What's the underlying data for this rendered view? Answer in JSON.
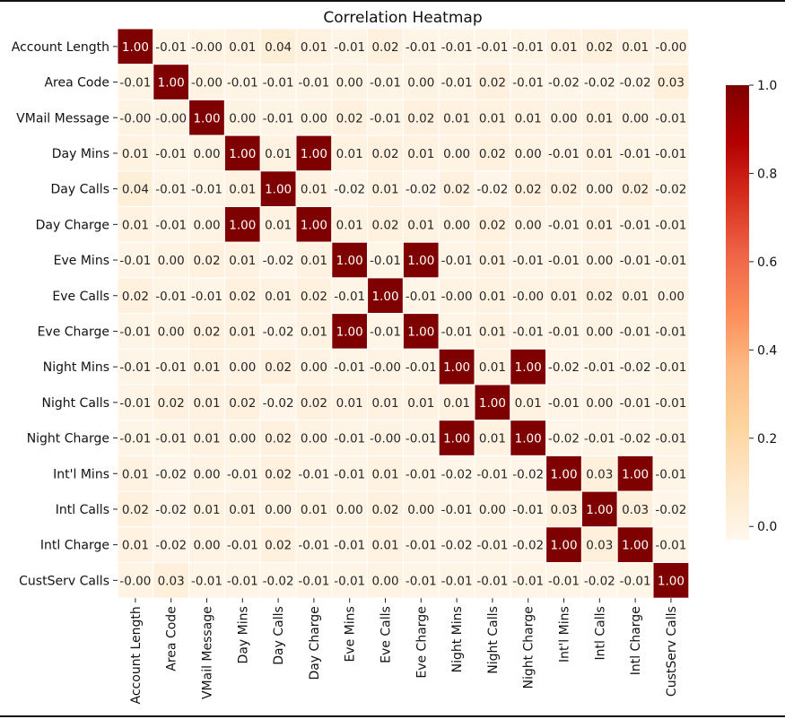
{
  "chart_data": {
    "type": "heatmap",
    "title": "Correlation Heatmap",
    "xlabel": "",
    "ylabel": "",
    "labels": [
      "Account Length",
      "Area Code",
      "VMail Message",
      "Day Mins",
      "Day Calls",
      "Day Charge",
      "Eve Mins",
      "Eve Calls",
      "Eve Charge",
      "Night Mins",
      "Night Calls",
      "Night Charge",
      "Int'l Mins",
      "Intl Calls",
      "Intl Charge",
      "CustServ Calls"
    ],
    "matrix": [
      [
        1.0,
        -0.01,
        -0.0,
        0.01,
        0.04,
        0.01,
        -0.01,
        0.02,
        -0.01,
        -0.01,
        -0.01,
        -0.01,
        0.01,
        0.02,
        0.01,
        -0.0
      ],
      [
        -0.01,
        1.0,
        -0.0,
        -0.01,
        -0.01,
        -0.01,
        0.0,
        -0.01,
        0.0,
        -0.01,
        0.02,
        -0.01,
        -0.02,
        -0.02,
        -0.02,
        0.03
      ],
      [
        -0.0,
        -0.0,
        1.0,
        0.0,
        -0.01,
        0.0,
        0.02,
        -0.01,
        0.02,
        0.01,
        0.01,
        0.01,
        0.0,
        0.01,
        0.0,
        -0.01
      ],
      [
        0.01,
        -0.01,
        0.0,
        1.0,
        0.01,
        1.0,
        0.01,
        0.02,
        0.01,
        0.0,
        0.02,
        0.0,
        -0.01,
        0.01,
        -0.01,
        -0.01
      ],
      [
        0.04,
        -0.01,
        -0.01,
        0.01,
        1.0,
        0.01,
        -0.02,
        0.01,
        -0.02,
        0.02,
        -0.02,
        0.02,
        0.02,
        0.0,
        0.02,
        -0.02
      ],
      [
        0.01,
        -0.01,
        0.0,
        1.0,
        0.01,
        1.0,
        0.01,
        0.02,
        0.01,
        0.0,
        0.02,
        0.0,
        -0.01,
        0.01,
        -0.01,
        -0.01
      ],
      [
        -0.01,
        0.0,
        0.02,
        0.01,
        -0.02,
        0.01,
        1.0,
        -0.01,
        1.0,
        -0.01,
        0.01,
        -0.01,
        -0.01,
        0.0,
        -0.01,
        -0.01
      ],
      [
        0.02,
        -0.01,
        -0.01,
        0.02,
        0.01,
        0.02,
        -0.01,
        1.0,
        -0.01,
        -0.0,
        0.01,
        -0.0,
        0.01,
        0.02,
        0.01,
        0.0
      ],
      [
        -0.01,
        0.0,
        0.02,
        0.01,
        -0.02,
        0.01,
        1.0,
        -0.01,
        1.0,
        -0.01,
        0.01,
        -0.01,
        -0.01,
        0.0,
        -0.01,
        -0.01
      ],
      [
        -0.01,
        -0.01,
        0.01,
        0.0,
        0.02,
        0.0,
        -0.01,
        -0.0,
        -0.01,
        1.0,
        0.01,
        1.0,
        -0.02,
        -0.01,
        -0.02,
        -0.01
      ],
      [
        -0.01,
        0.02,
        0.01,
        0.02,
        -0.02,
        0.02,
        0.01,
        0.01,
        0.01,
        0.01,
        1.0,
        0.01,
        -0.01,
        0.0,
        -0.01,
        -0.01
      ],
      [
        -0.01,
        -0.01,
        0.01,
        0.0,
        0.02,
        0.0,
        -0.01,
        -0.0,
        -0.01,
        1.0,
        0.01,
        1.0,
        -0.02,
        -0.01,
        -0.02,
        -0.01
      ],
      [
        0.01,
        -0.02,
        0.0,
        -0.01,
        0.02,
        -0.01,
        -0.01,
        0.01,
        -0.01,
        -0.02,
        -0.01,
        -0.02,
        1.0,
        0.03,
        1.0,
        -0.01
      ],
      [
        0.02,
        -0.02,
        0.01,
        0.01,
        0.0,
        0.01,
        0.0,
        0.02,
        0.0,
        -0.01,
        0.0,
        -0.01,
        0.03,
        1.0,
        0.03,
        -0.02
      ],
      [
        0.01,
        -0.02,
        0.0,
        -0.01,
        0.02,
        -0.01,
        -0.01,
        0.01,
        -0.01,
        -0.02,
        -0.01,
        -0.02,
        1.0,
        0.03,
        1.0,
        -0.01
      ],
      [
        -0.0,
        0.03,
        -0.01,
        -0.01,
        -0.02,
        -0.01,
        -0.01,
        0.0,
        -0.01,
        -0.01,
        -0.01,
        -0.01,
        -0.01,
        -0.02,
        -0.01,
        1.0
      ]
    ],
    "colorbar": {
      "range": [
        -0.03,
        1.0
      ],
      "ticks": [
        "0.0",
        "0.2",
        "0.4",
        "0.6",
        "0.8",
        "1.0"
      ],
      "tick_values": [
        0.0,
        0.2,
        0.4,
        0.6,
        0.8,
        1.0
      ],
      "colormap": "OrRd",
      "colors": [
        "#fff7ec",
        "#fee8c8",
        "#fdd49e",
        "#fdbb84",
        "#fc8d59",
        "#ef6548",
        "#d7301f",
        "#b30000",
        "#7f0000"
      ]
    },
    "annotations": "cell values shown with 2 decimals",
    "grid": false,
    "legend": "colorbar-right"
  }
}
